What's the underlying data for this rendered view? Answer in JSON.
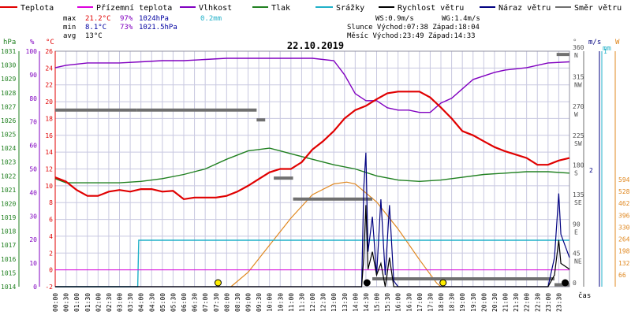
{
  "legend": [
    {
      "label": "Teplota",
      "color": "#e00000"
    },
    {
      "label": "Přízemní teplota",
      "color": "#dd00dd"
    },
    {
      "label": "Vlhkost",
      "color": "#8000c0"
    },
    {
      "label": "Tlak",
      "color": "#208020"
    },
    {
      "label": "Srážky",
      "color": "#20b0c8"
    },
    {
      "label": "Rychlost větru",
      "color": "#000000"
    },
    {
      "label": "Náraz větru",
      "color": "#000080"
    },
    {
      "label": "Směr větru",
      "color": "#707070"
    }
  ],
  "stats": {
    "max_label": "max",
    "max_temp": "21.2°C",
    "max_hum": "97%",
    "max_press": "1024hPa",
    "max_rain": "0.2mm",
    "min_label": "min",
    "min_temp": "8.1°C",
    "min_hum": "73%",
    "min_press": "1021.5hPa",
    "avg_label": "avg",
    "avg_temp": "13°C"
  },
  "info": {
    "ws": "WS:0.9m/s",
    "wg": "WG:1.4m/s",
    "sun": "Slunce Východ:07:38  Západ:18:04",
    "moon": "Měsíc  Východ:23:49  Západ:14:33"
  },
  "chart_title": "22.10.2019",
  "colors": {
    "temp": "#e00000",
    "ground": "#dd00dd",
    "hum": "#8000c0",
    "press": "#208020",
    "rain": "#20b0c8",
    "wind": "#000000",
    "gust": "#000080",
    "dir": "#707070",
    "sun": "#e08820",
    "grid": "#c8c8e0",
    "axis": "#000000"
  },
  "axes": {
    "hpa_label": "hPa",
    "pct_label": "%",
    "c_label": "°C",
    "hpa_ticks": [
      "1014",
      "1015",
      "1016",
      "1017",
      "1018",
      "1019",
      "1020",
      "1021",
      "1022",
      "1023",
      "1024",
      "1025",
      "1026",
      "1027",
      "1028",
      "1029",
      "1030",
      "1031"
    ],
    "pct_ticks": [
      "0",
      "10",
      "20",
      "30",
      "40",
      "50",
      "60",
      "70",
      "80",
      "90",
      "100"
    ],
    "c_ticks": [
      "-2",
      "0",
      "2",
      "4",
      "6",
      "8",
      "10",
      "12",
      "14",
      "16",
      "18",
      "20",
      "22",
      "24",
      "26"
    ],
    "deg_label": "°",
    "dir_ticks": [
      {
        "deg": "360",
        "dir": "N"
      },
      {
        "deg": "315",
        "dir": "NW"
      },
      {
        "deg": "270",
        "dir": "W"
      },
      {
        "deg": "225",
        "dir": "SW"
      },
      {
        "deg": "180",
        "dir": "S"
      },
      {
        "deg": "135",
        "dir": "SE"
      },
      {
        "deg": "90",
        "dir": "E"
      },
      {
        "deg": "45",
        "dir": "NE"
      },
      {
        "deg": "0",
        "dir": ""
      }
    ],
    "ms_label": "m/s",
    "mm_label": "mm",
    "ms_ticks": [
      "2"
    ],
    "mm_ticks": [
      "1"
    ],
    "w_label": "W",
    "w_ticks": [
      "594",
      "528",
      "462",
      "396",
      "330",
      "264",
      "198",
      "132",
      "66"
    ],
    "time_label": "čas",
    "time_ticks": [
      "00:00",
      "00:30",
      "01:00",
      "01:30",
      "02:00",
      "02:30",
      "03:00",
      "03:30",
      "04:00",
      "04:30",
      "05:00",
      "05:30",
      "06:00",
      "06:30",
      "07:00",
      "07:30",
      "08:00",
      "08:30",
      "09:00",
      "09:30",
      "10:00",
      "10:30",
      "11:00",
      "11:30",
      "12:00",
      "12:30",
      "13:00",
      "13:30",
      "14:00",
      "14:30",
      "15:00",
      "15:30",
      "16:00",
      "16:30",
      "17:00",
      "17:30",
      "18:00",
      "18:30",
      "19:00",
      "19:30",
      "20:00",
      "20:30",
      "21:00",
      "21:30",
      "22:00",
      "22:30",
      "23:00",
      "23:30"
    ]
  },
  "chart_data": {
    "type": "line",
    "title": "22.10.2019",
    "xlabel": "čas",
    "x_unit": "hours",
    "xlim": [
      0,
      24
    ],
    "temp_ylim": [
      -2,
      26
    ],
    "series": [
      {
        "name": "Teplota",
        "unit": "°C",
        "points": [
          [
            0,
            11
          ],
          [
            0.5,
            10.5
          ],
          [
            1,
            9.5
          ],
          [
            1.5,
            8.8
          ],
          [
            2,
            8.8
          ],
          [
            2.5,
            9.3
          ],
          [
            3,
            9.5
          ],
          [
            3.5,
            9.3
          ],
          [
            4,
            9.6
          ],
          [
            4.5,
            9.6
          ],
          [
            5,
            9.3
          ],
          [
            5.5,
            9.4
          ],
          [
            6,
            8.4
          ],
          [
            6.5,
            8.6
          ],
          [
            7,
            8.6
          ],
          [
            7.5,
            8.6
          ],
          [
            8,
            8.8
          ],
          [
            8.5,
            9.3
          ],
          [
            9,
            10
          ],
          [
            9.5,
            10.8
          ],
          [
            10,
            11.6
          ],
          [
            10.5,
            12
          ],
          [
            11,
            12
          ],
          [
            11.5,
            12.8
          ],
          [
            12,
            14.3
          ],
          [
            12.5,
            15.3
          ],
          [
            13,
            16.5
          ],
          [
            13.5,
            18
          ],
          [
            14,
            19
          ],
          [
            14.5,
            19.5
          ],
          [
            15,
            20.3
          ],
          [
            15.5,
            21
          ],
          [
            16,
            21.2
          ],
          [
            16.5,
            21.2
          ],
          [
            17,
            21.2
          ],
          [
            17.5,
            20.5
          ],
          [
            18,
            19.3
          ],
          [
            18.5,
            18
          ],
          [
            19,
            16.5
          ],
          [
            19.5,
            16
          ],
          [
            20,
            15.3
          ],
          [
            20.5,
            14.6
          ],
          [
            21,
            14.1
          ],
          [
            21.5,
            13.7
          ],
          [
            22,
            13.3
          ],
          [
            22.5,
            12.5
          ],
          [
            23,
            12.5
          ],
          [
            23.5,
            13
          ],
          [
            24,
            13.3
          ]
        ]
      },
      {
        "name": "Vlhkost",
        "unit": "%",
        "points": [
          [
            0,
            93
          ],
          [
            0.5,
            94
          ],
          [
            1,
            94.5
          ],
          [
            1.5,
            95
          ],
          [
            2,
            95
          ],
          [
            3,
            95
          ],
          [
            4,
            95.5
          ],
          [
            5,
            96
          ],
          [
            6,
            96
          ],
          [
            7,
            96.5
          ],
          [
            8,
            97
          ],
          [
            9,
            97
          ],
          [
            10,
            97
          ],
          [
            11,
            97
          ],
          [
            12,
            97
          ],
          [
            13,
            96
          ],
          [
            13.5,
            90
          ],
          [
            14,
            82
          ],
          [
            14.5,
            79
          ],
          [
            15,
            79
          ],
          [
            15.5,
            76
          ],
          [
            16,
            75
          ],
          [
            16.5,
            75
          ],
          [
            17,
            74
          ],
          [
            17.5,
            74
          ],
          [
            18,
            78
          ],
          [
            18.5,
            80
          ],
          [
            19,
            84
          ],
          [
            19.5,
            88
          ],
          [
            20,
            89.5
          ],
          [
            20.5,
            91
          ],
          [
            21,
            92
          ],
          [
            22,
            93
          ],
          [
            23,
            95
          ],
          [
            24,
            95.5
          ]
        ]
      },
      {
        "name": "Tlak",
        "unit": "hPa",
        "points": [
          [
            0,
            1021.8
          ],
          [
            0.5,
            1021.5
          ],
          [
            1,
            1021.5
          ],
          [
            2,
            1021.5
          ],
          [
            3,
            1021.5
          ],
          [
            4,
            1021.6
          ],
          [
            5,
            1021.8
          ],
          [
            6,
            1022.1
          ],
          [
            7,
            1022.5
          ],
          [
            8,
            1023.2
          ],
          [
            9,
            1023.8
          ],
          [
            10,
            1024
          ],
          [
            10.5,
            1023.8
          ],
          [
            11,
            1023.6
          ],
          [
            12,
            1023.2
          ],
          [
            13,
            1022.8
          ],
          [
            14,
            1022.5
          ],
          [
            15,
            1022
          ],
          [
            16,
            1021.7
          ],
          [
            17,
            1021.6
          ],
          [
            18,
            1021.7
          ],
          [
            19,
            1021.9
          ],
          [
            20,
            1022.1
          ],
          [
            21,
            1022.2
          ],
          [
            22,
            1022.3
          ],
          [
            23,
            1022.3
          ],
          [
            24,
            1022.2
          ]
        ]
      },
      {
        "name": "Přízemní teplota",
        "unit": "°C",
        "points": [
          [
            0,
            0
          ],
          [
            24,
            0
          ]
        ]
      },
      {
        "name": "Srážky",
        "unit": "mm",
        "points": [
          [
            0,
            0
          ],
          [
            3.85,
            0
          ],
          [
            3.9,
            0.2
          ],
          [
            24,
            0.2
          ]
        ]
      },
      {
        "name": "Směr větru",
        "unit": "°",
        "segments": [
          [
            0,
            3.8,
            270
          ],
          [
            3.8,
            9.4,
            270
          ],
          [
            9.4,
            9.8,
            255
          ],
          [
            10.2,
            11.1,
            166
          ],
          [
            11.1,
            11.3,
            134
          ],
          [
            11.3,
            14.8,
            134
          ],
          [
            14.8,
            23.3,
            12
          ],
          [
            23.3,
            24,
            3
          ],
          [
            23.4,
            24,
            355
          ]
        ]
      },
      {
        "name": "Rychlost větru",
        "unit": "m/s",
        "points": [
          [
            0,
            0
          ],
          [
            14.3,
            0
          ],
          [
            14.4,
            0.5
          ],
          [
            14.5,
            1.4
          ],
          [
            14.6,
            0.3
          ],
          [
            14.8,
            0.6
          ],
          [
            15,
            0.2
          ],
          [
            15.2,
            0.4
          ],
          [
            15.4,
            0
          ],
          [
            15.6,
            0.5
          ],
          [
            15.8,
            0
          ],
          [
            16,
            0
          ],
          [
            23,
            0
          ],
          [
            23.3,
            0.2
          ],
          [
            23.5,
            0.8
          ],
          [
            23.6,
            0.4
          ],
          [
            24,
            0.3
          ]
        ]
      },
      {
        "name": "Náraz větru",
        "unit": "m/s",
        "points": [
          [
            0,
            0
          ],
          [
            14.3,
            0
          ],
          [
            14.4,
            1.7
          ],
          [
            14.5,
            2.3
          ],
          [
            14.6,
            0.6
          ],
          [
            14.8,
            1.2
          ],
          [
            15,
            0.2
          ],
          [
            15.2,
            1.5
          ],
          [
            15.4,
            0.2
          ],
          [
            15.6,
            1.4
          ],
          [
            15.8,
            0.1
          ],
          [
            16,
            0
          ],
          [
            23,
            0
          ],
          [
            23.3,
            0.5
          ],
          [
            23.5,
            1.6
          ],
          [
            23.6,
            0.9
          ],
          [
            24,
            0.5
          ]
        ]
      },
      {
        "name": "Sluneční záření",
        "unit": "W",
        "points": [
          [
            8.2,
            0
          ],
          [
            9,
            80
          ],
          [
            10,
            230
          ],
          [
            11,
            380
          ],
          [
            12,
            510
          ],
          [
            13,
            570
          ],
          [
            13.6,
            580
          ],
          [
            14,
            570
          ],
          [
            15,
            470
          ],
          [
            16,
            320
          ],
          [
            17,
            150
          ],
          [
            17.8,
            20
          ],
          [
            18,
            0
          ]
        ]
      }
    ],
    "sunrise_marker": 7.6,
    "sunset_marker": 18.1
  }
}
